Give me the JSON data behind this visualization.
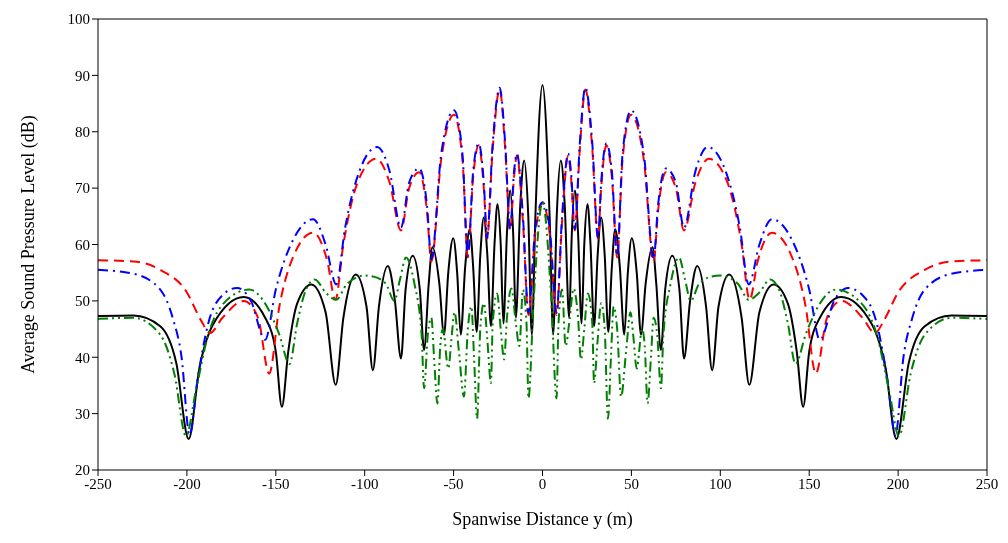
{
  "chart_data": {
    "type": "line",
    "xlabel": "Spanwise Distance y (m)",
    "ylabel": "Average Sound Pressure Level (dB)",
    "xlim": [
      -250,
      250
    ],
    "xticks": [
      -250,
      -200,
      -150,
      -100,
      -50,
      0,
      50,
      100,
      150,
      200,
      250
    ],
    "ylim": [
      20,
      100
    ],
    "yticks": [
      20,
      30,
      40,
      50,
      60,
      70,
      80,
      90,
      100
    ],
    "marker": "none",
    "series": [
      {
        "color": "#000000",
        "line_style": "solid",
        "x": [
          -250,
          -230,
          -215,
          -206,
          -199,
          -193,
          -185,
          -168,
          -156,
          -150,
          -146.6,
          -143,
          -138,
          -130,
          -122,
          -116.3,
          -112,
          -105,
          -99,
          -95.4,
          -92,
          -87,
          -83,
          -79.6,
          -77,
          -73,
          -69,
          -66.6,
          -64,
          -61.9,
          -58,
          -55.4,
          -53,
          -50.2,
          -48,
          -46,
          -43.5,
          -40.9,
          -39,
          -37,
          -35,
          -33,
          -31,
          -29,
          -27,
          -25.3,
          -23.5,
          -22,
          -20,
          -18.2,
          -16.5,
          -15,
          -12.5,
          -10.3,
          -8,
          -6,
          -4,
          0,
          4,
          6,
          8,
          10.3,
          12.5,
          15,
          16.5,
          18.2,
          20,
          22,
          23.5,
          25.3,
          27,
          29,
          31,
          33,
          35,
          37,
          39,
          40.9,
          43.5,
          46,
          48,
          50.2,
          53,
          55.4,
          58,
          61.9,
          64,
          66.6,
          69,
          73,
          77,
          79.6,
          83,
          87,
          92,
          95.4,
          99,
          105,
          112,
          116.3,
          122,
          130,
          138,
          143,
          146.6,
          150,
          156,
          168,
          185,
          193,
          199,
          206,
          215,
          230,
          250
        ],
        "values": [
          47.3,
          47.4,
          45.5,
          39,
          25.5,
          38,
          46,
          50.7,
          47,
          41,
          31.2,
          41,
          49.5,
          52.9,
          48,
          35.1,
          47,
          54.7,
          49,
          37.7,
          49,
          56.2,
          50,
          39.8,
          52,
          58,
          52,
          41.3,
          53,
          59.5,
          53,
          44,
          55,
          61.1,
          55,
          44,
          56,
          62.7,
          56,
          44.5,
          58,
          64.8,
          58,
          45.5,
          60,
          67.2,
          60,
          46,
          62,
          69.6,
          62,
          47,
          67,
          74.9,
          65,
          44,
          65,
          88.3,
          65,
          44,
          65,
          74.9,
          67,
          47,
          62,
          69.6,
          62,
          46,
          60,
          67.2,
          60,
          45.5,
          58,
          64.8,
          58,
          44.5,
          56,
          62.7,
          56,
          44,
          55,
          61.1,
          55,
          44,
          53,
          59.5,
          53,
          41.3,
          52,
          58,
          52,
          39.8,
          50,
          56.2,
          49,
          37.7,
          49,
          54.7,
          47,
          35.1,
          48,
          52.9,
          49.5,
          41,
          31.2,
          41,
          47,
          50.7,
          46,
          38,
          25.5,
          39,
          45.5,
          47.4,
          47.3
        ]
      },
      {
        "color": "#ff0000",
        "line_style": "dashed",
        "x": [
          -250,
          -230,
          -215,
          -200,
          -192,
          -187,
          -180,
          -168,
          -160,
          -153.7,
          -148,
          -140,
          -129,
          -121,
          -116.5,
          -112,
          -104,
          -93.6,
          -86,
          -79.6,
          -75,
          -69.4,
          -65,
          -62.5,
          -57,
          -49.8,
          -45,
          -42,
          -39,
          -35.9,
          -33,
          -31.2,
          -28,
          -24.1,
          -21,
          -18.2,
          -16,
          -14.4,
          -11,
          -7.9,
          -4,
          0,
          4,
          7.9,
          11,
          14.4,
          16,
          18.2,
          21,
          24.1,
          28,
          31.2,
          33,
          35.9,
          39,
          42,
          45,
          49.8,
          57,
          62.5,
          65,
          69.4,
          75,
          79.6,
          86,
          93.6,
          104,
          112,
          116.5,
          121,
          129,
          140,
          148,
          153.7,
          160,
          168,
          180,
          187,
          192,
          200,
          215,
          230,
          250
        ],
        "values": [
          57.2,
          57,
          55.5,
          51.5,
          46.5,
          44.3,
          47,
          50,
          47,
          37.1,
          49,
          58,
          62.1,
          57,
          50.2,
          60,
          71,
          75.2,
          71,
          62.5,
          70,
          72.8,
          66,
          57,
          75,
          83,
          75,
          57.7,
          72,
          77.6,
          70,
          61,
          77,
          87.5,
          77,
          62.5,
          72,
          75.8,
          64,
          47.5,
          62,
          67.3,
          62,
          47.5,
          64,
          75.8,
          72,
          62.5,
          77,
          87.5,
          77,
          61,
          70,
          77.6,
          72,
          57.7,
          75,
          83,
          75,
          57,
          66,
          72.8,
          70,
          62.5,
          71,
          75.2,
          71,
          60,
          50.2,
          57,
          62.1,
          58,
          49,
          37.1,
          47,
          50,
          47,
          44.3,
          46.5,
          51.5,
          55.5,
          57,
          57.2
        ]
      },
      {
        "color": "#0000ff",
        "line_style": "dashdot",
        "x": [
          -250,
          -230,
          -215,
          -208,
          -203,
          -198.5,
          -194,
          -188,
          -180,
          -171.8,
          -164,
          -156,
          -150,
          -140,
          -129,
          -122,
          -116,
          -111,
          -103,
          -93,
          -86,
          -79.6,
          -75,
          -69.4,
          -65,
          -62.5,
          -57,
          -49.8,
          -45,
          -42,
          -39,
          -35.9,
          -33,
          -31.2,
          -28,
          -24.1,
          -21,
          -18.2,
          -16,
          -14.4,
          -11,
          -7.9,
          -4,
          0,
          4,
          7.9,
          11,
          14.4,
          16,
          18.2,
          21,
          24.1,
          28,
          31.2,
          33,
          35.9,
          39,
          42,
          45,
          49.8,
          57,
          62.5,
          65,
          69.4,
          75,
          79.6,
          86,
          93,
          103,
          111,
          116,
          122,
          129,
          140,
          150,
          156,
          164,
          171.8,
          180,
          188,
          194,
          198.5,
          203,
          208,
          215,
          230,
          250
        ],
        "values": [
          55.5,
          54.8,
          52,
          47,
          40,
          26.2,
          36,
          46,
          51,
          52.3,
          50,
          43.1,
          52,
          61,
          64.5,
          60,
          52.9,
          63,
          73,
          77.3,
          73,
          63,
          71,
          73.5,
          67,
          57.4,
          76,
          83.8,
          76,
          58,
          73,
          77.9,
          71,
          61.2,
          78,
          87.8,
          78,
          62.7,
          73,
          76.1,
          65,
          47.9,
          63,
          67.5,
          63,
          47.9,
          65,
          76.1,
          73,
          62.7,
          78,
          87.8,
          78,
          61.2,
          71,
          77.9,
          73,
          58,
          76,
          83.8,
          76,
          57.4,
          67,
          73.5,
          71,
          63,
          73,
          77.3,
          73,
          63,
          52.9,
          60,
          64.5,
          61,
          52,
          43.1,
          50,
          52.3,
          51,
          46,
          36,
          26.2,
          40,
          47,
          52,
          54.8,
          55.5
        ]
      },
      {
        "color": "#008000",
        "line_style": "dashdotdot",
        "x": [
          -250,
          -230,
          -215,
          -207,
          -200.5,
          -195,
          -188,
          -178,
          -165,
          -155,
          -148,
          -142.3,
          -138,
          -133,
          -128,
          -122,
          -116,
          -110,
          -100,
          -95,
          -88,
          -83.4,
          -80,
          -76.8,
          -72,
          -68,
          -66.6,
          -64.5,
          -62.5,
          -61,
          -59.1,
          -57.5,
          -56,
          -53,
          -51,
          -49.5,
          -47,
          -44.2,
          -42,
          -40,
          -38.5,
          -36.8,
          -35,
          -33,
          -31,
          -29,
          -28,
          -25.5,
          -23.5,
          -21.6,
          -20,
          -17.5,
          -15,
          -13,
          -11,
          -9,
          -7.9,
          -5,
          0,
          5,
          7.9,
          9,
          11,
          13,
          15,
          17.5,
          20,
          21.6,
          23.5,
          25.5,
          28,
          29,
          31,
          33,
          35,
          36.8,
          38.5,
          40,
          42,
          44.2,
          47,
          49.5,
          51,
          53,
          56,
          57.5,
          59.1,
          61,
          62.5,
          64.5,
          66.6,
          68,
          72,
          76.8,
          80,
          83.4,
          88,
          95,
          100,
          110,
          116,
          122,
          128,
          133,
          138,
          142.3,
          148,
          155,
          165,
          178,
          188,
          195,
          200.5,
          207,
          215,
          230,
          250
        ],
        "values": [
          46.8,
          47,
          44,
          37,
          26,
          34,
          44,
          50,
          52,
          49,
          44,
          38.8,
          46,
          52,
          53.8,
          51.5,
          50.2,
          53,
          54.5,
          54.3,
          53,
          50,
          54,
          57.7,
          53,
          44,
          34.5,
          44,
          47,
          40,
          31.8,
          42,
          45,
          38,
          44,
          48,
          41,
          33,
          45,
          49,
          40,
          29.1,
          45,
          49.6,
          43,
          35.4,
          46,
          51.3,
          45,
          39.6,
          47,
          52.2,
          46,
          42,
          52,
          46,
          32.7,
          50,
          67.5,
          50,
          32.7,
          46,
          52,
          42,
          46,
          52.2,
          47,
          39.6,
          45,
          51.3,
          46,
          35.4,
          43,
          49.6,
          45,
          29.1,
          40,
          49,
          45,
          33,
          41,
          48,
          44,
          38,
          45,
          42,
          31.8,
          40,
          47,
          44,
          34.5,
          44,
          53,
          57.7,
          54,
          50,
          53,
          54.3,
          54.5,
          53,
          50.2,
          51.5,
          53.8,
          52,
          46,
          38.8,
          44,
          49,
          52,
          50,
          44,
          34,
          26,
          37,
          44,
          47,
          46.8
        ]
      }
    ]
  }
}
